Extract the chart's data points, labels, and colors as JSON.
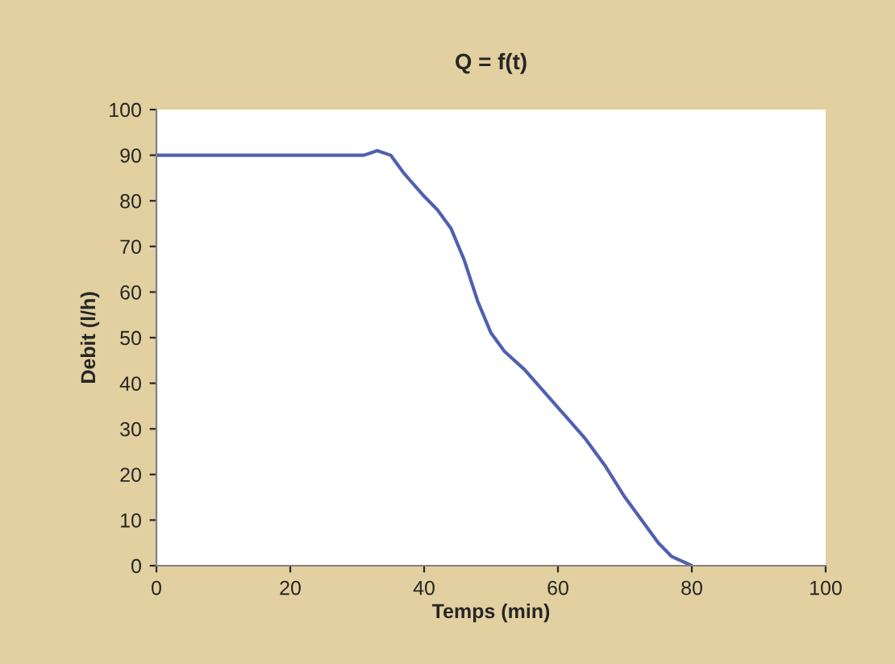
{
  "chart_data": {
    "type": "line",
    "title": "Q = f(t)",
    "xlabel": "Temps (min)",
    "ylabel": "Debit (l/h)",
    "x": [
      0,
      31,
      33,
      35,
      37,
      40,
      42,
      44,
      46,
      48,
      50,
      52,
      55,
      58,
      61,
      64,
      67,
      70,
      73,
      75,
      77,
      80
    ],
    "series": [
      {
        "color": "#5060b0",
        "values": [
          90,
          90,
          91,
          90,
          86,
          81,
          78,
          74,
          67,
          58,
          51,
          47,
          43,
          38,
          33,
          28,
          22,
          15,
          9,
          5,
          2,
          0
        ]
      }
    ],
    "xlim": [
      0,
      100
    ],
    "xticks": [
      0,
      20,
      40,
      60,
      80,
      100
    ],
    "ylim": [
      0,
      100
    ],
    "yticks": [
      0,
      10,
      20,
      30,
      40,
      50,
      60,
      70,
      80,
      90,
      100
    ],
    "grid": false,
    "legend": false,
    "marker": "none",
    "line_style": "solid"
  }
}
